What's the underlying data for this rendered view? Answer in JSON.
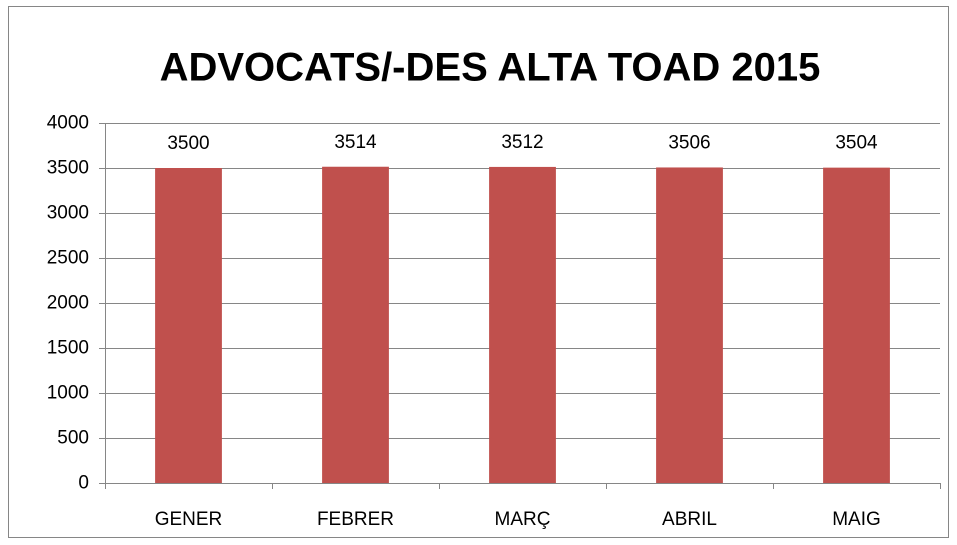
{
  "chart_data": {
    "type": "bar",
    "title": "ADVOCATS/-DES ALTA TOAD 2015",
    "categories": [
      "GENER",
      "FEBRER",
      "MARÇ",
      "ABRIL",
      "MAIG"
    ],
    "values": [
      3500,
      3514,
      3512,
      3506,
      3504
    ],
    "color": "#c0504d",
    "ylim": [
      0,
      4000
    ],
    "yticks": [
      0,
      500,
      1000,
      1500,
      2000,
      2500,
      3000,
      3500,
      4000
    ],
    "grid": true
  }
}
